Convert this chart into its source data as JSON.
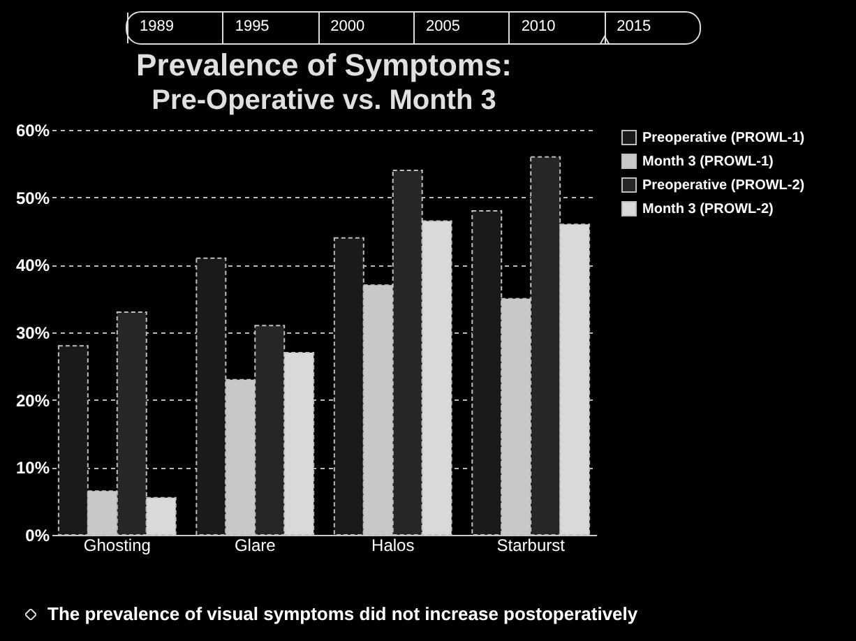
{
  "chart_data": {
    "type": "bar",
    "title": "Prevalence of Symptoms:",
    "subtitle": "Pre-Operative vs. Month 3",
    "annotations": [
      "1989",
      "1995",
      "2000",
      "2005",
      "2010",
      "2015",
      "The prevalence of visual symptoms did not increase postoperatively"
    ],
    "categories": [
      "Ghosting",
      "Glare",
      "Halos",
      "Starburst"
    ],
    "series": [
      {
        "name": "Preoperative (PROWL-1)",
        "color": "#1a1a1a",
        "values": [
          28,
          41,
          44,
          48
        ]
      },
      {
        "name": "Month 3 (PROWL-1)",
        "color": "#c8c8c8",
        "values": [
          6.5,
          23,
          37,
          35
        ]
      },
      {
        "name": "Preoperative (PROWL-2)",
        "color": "#262626",
        "values": [
          33,
          31,
          54,
          56
        ]
      },
      {
        "name": "Month 3 (PROWL-2)",
        "color": "#d9d9d9",
        "values": [
          5.5,
          27,
          46.5,
          46
        ]
      }
    ],
    "ylim": [
      0,
      60
    ],
    "yticks": [
      {
        "value": 0,
        "label": "0%"
      },
      {
        "value": 10,
        "label": "10%"
      },
      {
        "value": 20,
        "label": "20%"
      },
      {
        "value": 30,
        "label": "30%"
      },
      {
        "value": 40,
        "label": "40%"
      },
      {
        "value": 50,
        "label": "50%"
      },
      {
        "value": 60,
        "label": "60%"
      }
    ],
    "grid": "y",
    "legend": "right"
  }
}
